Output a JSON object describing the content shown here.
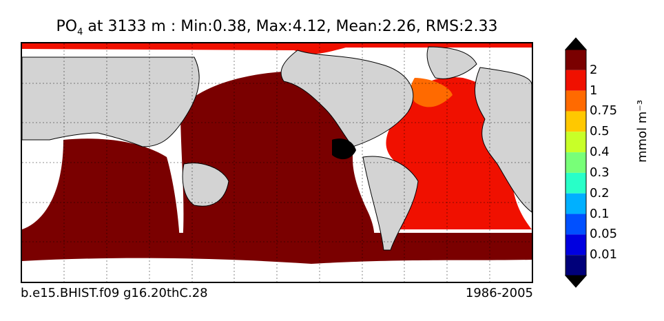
{
  "title": {
    "variable": "PO",
    "subscript": "4",
    "rest": " at 3133 m : Min:0.38, Max:4.12, Mean:2.26, RMS:2.33"
  },
  "footer": {
    "case": "b.e15.BHIST.f09 g16.20thC.28",
    "period": "1986-2005"
  },
  "colorbar": {
    "units": "mmol m⁻³",
    "labels": [
      "2",
      "1",
      "0.75",
      "0.5",
      "0.4",
      "0.3",
      "0.2",
      "0.1",
      "0.05",
      "0.01"
    ],
    "colors": [
      "#7a0000",
      "#f01000",
      "#ff6a00",
      "#ffc800",
      "#c8ff28",
      "#78ff78",
      "#28ffc8",
      "#00b0ff",
      "#0050ff",
      "#0000e0",
      "#00007a"
    ],
    "over_color": "#000000",
    "under_color": "#000000"
  },
  "map_colors": {
    "land": "#d3d3d3",
    "missing": "#ffffff",
    "high": "#7a0000",
    "mid": "#f01000",
    "orange": "#ff6a00",
    "over": "#000000"
  }
}
